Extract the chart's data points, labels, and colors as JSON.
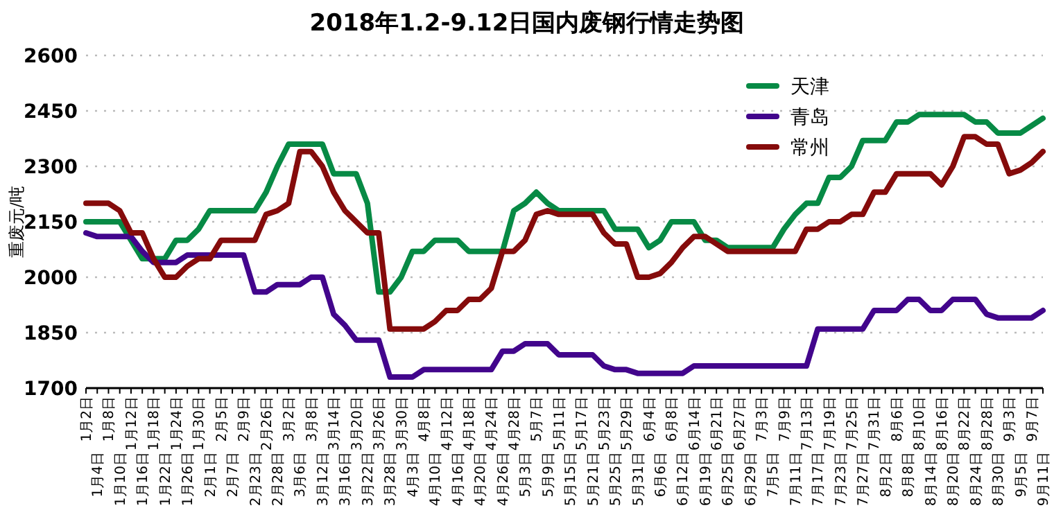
{
  "chart_data": {
    "type": "line",
    "title": "2018年1.2-9.12日国内废钢行情走势图",
    "ylabel": "重废元/吨",
    "categories": [
      "1月2日",
      "1月4日",
      "1月8日",
      "1月10日",
      "1月12日",
      "1月16日",
      "1月18日",
      "1月22日",
      "1月24日",
      "1月26日",
      "1月30日",
      "2月1日",
      "2月5日",
      "2月7日",
      "2月9日",
      "2月23日",
      "2月26日",
      "2月28日",
      "3月2日",
      "3月6日",
      "3月8日",
      "3月12日",
      "3月14日",
      "3月16日",
      "3月20日",
      "3月22日",
      "3月26日",
      "3月28日",
      "3月30日",
      "4月3日",
      "4月8日",
      "4月10日",
      "4月12日",
      "4月16日",
      "4月18日",
      "4月20日",
      "4月24日",
      "4月26日",
      "4月28日",
      "5月3日",
      "5月7日",
      "5月9日",
      "5月11日",
      "5月15日",
      "5月17日",
      "5月21日",
      "5月23日",
      "5月25日",
      "5月29日",
      "5月31日",
      "6月4日",
      "6月6日",
      "6月8日",
      "6月12日",
      "6月14日",
      "6月19日",
      "6月21日",
      "6月25日",
      "6月27日",
      "6月29日",
      "7月3日",
      "7月5日",
      "7月9日",
      "7月11日",
      "7月13日",
      "7月17日",
      "7月19日",
      "7月23日",
      "7月25日",
      "7月27日",
      "7月31日",
      "8月2日",
      "8月6日",
      "8月8日",
      "8月10日",
      "8月14日",
      "8月16日",
      "8月20日",
      "8月22日",
      "8月24日",
      "8月28日",
      "8月30日",
      "9月3日",
      "9月5日",
      "9月7日",
      "9月11日"
    ],
    "series": [
      {
        "name": "天津",
        "color": "#078a45",
        "values": [
          2150,
          2150,
          2150,
          2150,
          2100,
          2050,
          2050,
          2050,
          2100,
          2100,
          2130,
          2180,
          2180,
          2180,
          2180,
          2180,
          2230,
          2300,
          2360,
          2360,
          2360,
          2360,
          2280,
          2280,
          2280,
          2200,
          1960,
          1960,
          2000,
          2070,
          2070,
          2100,
          2100,
          2100,
          2070,
          2070,
          2070,
          2070,
          2180,
          2200,
          2230,
          2200,
          2180,
          2180,
          2180,
          2180,
          2180,
          2130,
          2130,
          2130,
          2080,
          2100,
          2150,
          2150,
          2150,
          2100,
          2100,
          2080,
          2080,
          2080,
          2080,
          2080,
          2130,
          2170,
          2200,
          2200,
          2270,
          2270,
          2300,
          2370,
          2370,
          2370,
          2420,
          2420,
          2440,
          2440,
          2440,
          2440,
          2440,
          2420,
          2420,
          2390,
          2390,
          2390,
          2410,
          2430
        ]
      },
      {
        "name": "青岛",
        "color": "#42058c",
        "values": [
          2120,
          2110,
          2110,
          2110,
          2110,
          2070,
          2040,
          2040,
          2040,
          2060,
          2060,
          2060,
          2060,
          2060,
          2060,
          1960,
          1960,
          1980,
          1980,
          1980,
          2000,
          2000,
          1900,
          1870,
          1830,
          1830,
          1830,
          1730,
          1730,
          1730,
          1750,
          1750,
          1750,
          1750,
          1750,
          1750,
          1750,
          1800,
          1800,
          1820,
          1820,
          1820,
          1790,
          1790,
          1790,
          1790,
          1760,
          1750,
          1750,
          1740,
          1740,
          1740,
          1740,
          1740,
          1760,
          1760,
          1760,
          1760,
          1760,
          1760,
          1760,
          1760,
          1760,
          1760,
          1760,
          1860,
          1860,
          1860,
          1860,
          1860,
          1910,
          1910,
          1910,
          1940,
          1940,
          1910,
          1910,
          1940,
          1940,
          1940,
          1900,
          1890,
          1890,
          1890,
          1890,
          1910
        ]
      },
      {
        "name": "常州",
        "color": "#850b0b",
        "values": [
          2200,
          2200,
          2200,
          2180,
          2120,
          2120,
          2050,
          2000,
          2000,
          2030,
          2050,
          2050,
          2100,
          2100,
          2100,
          2100,
          2170,
          2180,
          2200,
          2340,
          2340,
          2300,
          2230,
          2180,
          2150,
          2120,
          2120,
          1860,
          1860,
          1860,
          1860,
          1880,
          1910,
          1910,
          1940,
          1940,
          1970,
          2070,
          2070,
          2100,
          2170,
          2180,
          2170,
          2170,
          2170,
          2170,
          2120,
          2090,
          2090,
          2000,
          2000,
          2010,
          2040,
          2080,
          2110,
          2110,
          2090,
          2070,
          2070,
          2070,
          2070,
          2070,
          2070,
          2070,
          2130,
          2130,
          2150,
          2150,
          2170,
          2170,
          2230,
          2230,
          2280,
          2280,
          2280,
          2280,
          2250,
          2300,
          2380,
          2380,
          2360,
          2360,
          2280,
          2290,
          2310,
          2340
        ]
      }
    ],
    "ylim": [
      1700,
      2600
    ],
    "yticks": [
      1700,
      1850,
      2000,
      2150,
      2300,
      2450,
      2600
    ],
    "grid": "y",
    "legend": "top right"
  }
}
